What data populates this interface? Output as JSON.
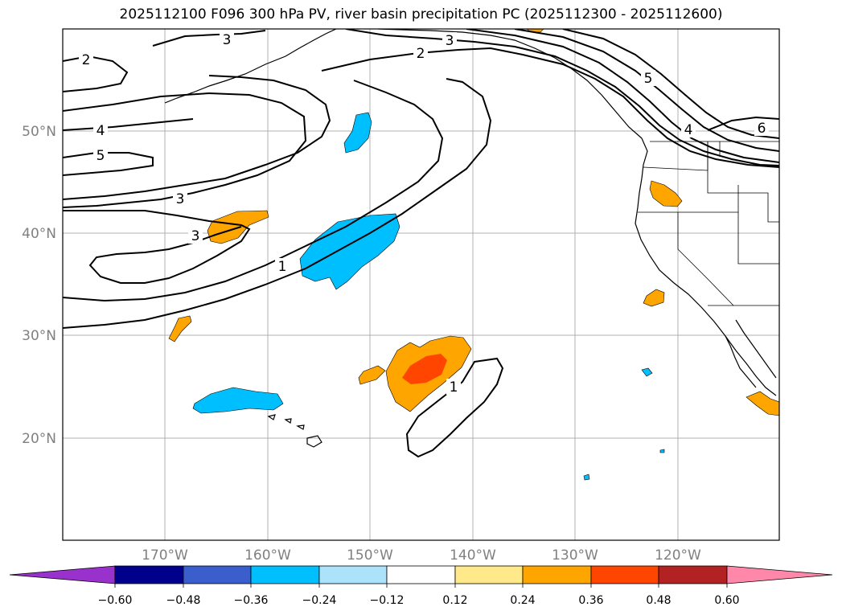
{
  "title": "2025112100 F096 300 hPa PV, river basin precipitation PC (2025112300 - 2025112600)",
  "map": {
    "lat_labels": [
      "50°N",
      "40°N",
      "30°N",
      "20°N"
    ],
    "lon_labels": [
      "170°W",
      "160°W",
      "150°W",
      "140°W",
      "130°W",
      "120°W"
    ],
    "contour_labels": [
      {
        "id": "a",
        "value": "2"
      },
      {
        "id": "b",
        "value": "3"
      },
      {
        "id": "c",
        "value": "3"
      },
      {
        "id": "d",
        "value": "2"
      },
      {
        "id": "e",
        "value": "4"
      },
      {
        "id": "f",
        "value": "5"
      },
      {
        "id": "g",
        "value": "3"
      },
      {
        "id": "h",
        "value": "3"
      },
      {
        "id": "i",
        "value": "1"
      },
      {
        "id": "j",
        "value": "1"
      },
      {
        "id": "k",
        "value": "5"
      },
      {
        "id": "l",
        "value": "4"
      },
      {
        "id": "m",
        "value": "6"
      }
    ]
  },
  "colorbar": {
    "ticks": [
      "−0.60",
      "−0.48",
      "−0.36",
      "−0.24",
      "−0.12",
      "0.12",
      "0.24",
      "0.36",
      "0.48",
      "0.60"
    ],
    "colors": [
      "#9932CC",
      "#00008B",
      "#3A5FCD",
      "#00BFFF",
      "#ADE3FA",
      "#FFFFFF",
      "#FFE98A",
      "#FFA500",
      "#FF4500",
      "#B22222",
      "#FF88AA"
    ]
  }
}
